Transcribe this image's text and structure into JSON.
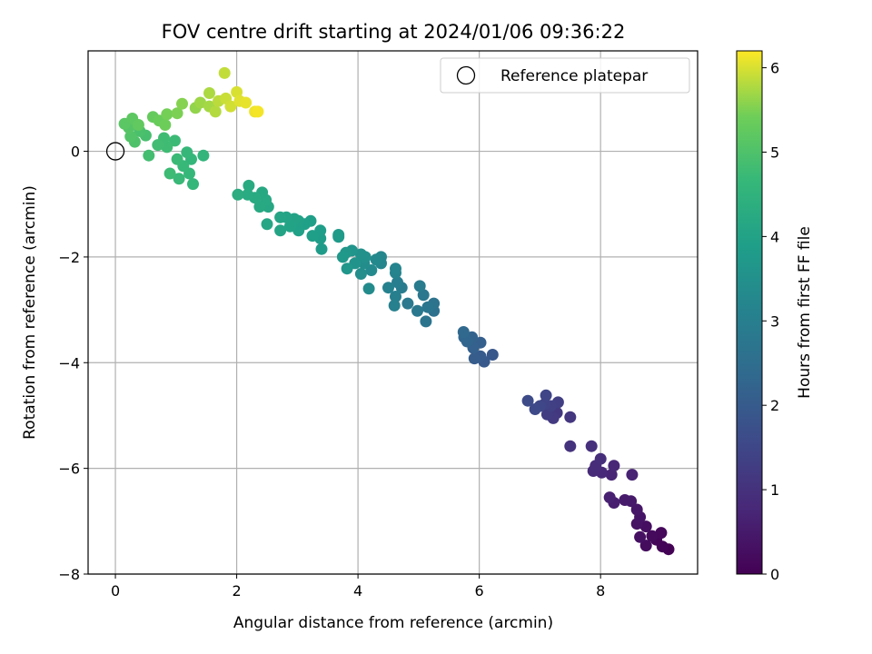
{
  "chart_data": {
    "type": "scatter",
    "title": "FOV centre drift starting at 2024/01/06 09:36:22",
    "xlabel": "Angular distance from reference (arcmin)",
    "ylabel": "Rotation from reference (arcmin)",
    "xlim": [
      -0.45,
      9.6
    ],
    "ylim": [
      -8.0,
      1.9
    ],
    "xticks": [
      0,
      2,
      4,
      6,
      8
    ],
    "yticks": [
      0,
      -2,
      -4,
      -6,
      -8
    ],
    "xtick_labels": [
      "0",
      "2",
      "4",
      "6",
      "8"
    ],
    "ytick_labels": [
      "0",
      "−2",
      "−4",
      "−6",
      "−8"
    ],
    "grid": true,
    "colorbar": {
      "label": "Hours from first FF file",
      "range": [
        0,
        6.2
      ],
      "ticks": [
        0,
        1,
        2,
        3,
        4,
        5,
        6
      ],
      "tick_labels": [
        "0",
        "1",
        "2",
        "3",
        "4",
        "5",
        "6"
      ],
      "colormap": "viridis"
    },
    "legend": {
      "position": "top-right",
      "entries": [
        "Reference platepar"
      ]
    },
    "reference_point": {
      "x": 0,
      "y": 0
    },
    "points": [
      {
        "x": 9.12,
        "y": -7.53,
        "h": 0.02
      },
      {
        "x": 9.02,
        "y": -7.48,
        "h": 0.06
      },
      {
        "x": 8.92,
        "y": -7.35,
        "h": 0.1
      },
      {
        "x": 9.0,
        "y": -7.22,
        "h": 0.14
      },
      {
        "x": 8.85,
        "y": -7.28,
        "h": 0.18
      },
      {
        "x": 8.75,
        "y": -7.46,
        "h": 0.22
      },
      {
        "x": 8.75,
        "y": -7.1,
        "h": 0.26
      },
      {
        "x": 8.65,
        "y": -7.3,
        "h": 0.3
      },
      {
        "x": 8.6,
        "y": -7.05,
        "h": 0.34
      },
      {
        "x": 8.65,
        "y": -6.92,
        "h": 0.38
      },
      {
        "x": 8.6,
        "y": -6.78,
        "h": 0.42
      },
      {
        "x": 8.5,
        "y": -6.62,
        "h": 0.48
      },
      {
        "x": 8.4,
        "y": -6.6,
        "h": 0.52
      },
      {
        "x": 8.22,
        "y": -6.65,
        "h": 0.58
      },
      {
        "x": 8.15,
        "y": -6.55,
        "h": 0.62
      },
      {
        "x": 8.52,
        "y": -6.12,
        "h": 0.68
      },
      {
        "x": 8.18,
        "y": -6.12,
        "h": 0.72
      },
      {
        "x": 8.22,
        "y": -5.95,
        "h": 0.76
      },
      {
        "x": 8.02,
        "y": -6.08,
        "h": 0.8
      },
      {
        "x": 7.88,
        "y": -6.05,
        "h": 0.84
      },
      {
        "x": 7.92,
        "y": -5.95,
        "h": 0.88
      },
      {
        "x": 8.0,
        "y": -5.82,
        "h": 0.92
      },
      {
        "x": 7.85,
        "y": -5.58,
        "h": 0.96
      },
      {
        "x": 7.5,
        "y": -5.58,
        "h": 1.02
      },
      {
        "x": 7.5,
        "y": -5.03,
        "h": 1.1
      },
      {
        "x": 7.28,
        "y": -4.95,
        "h": 1.16
      },
      {
        "x": 7.22,
        "y": -5.05,
        "h": 1.2
      },
      {
        "x": 7.12,
        "y": -4.98,
        "h": 1.25
      },
      {
        "x": 7.3,
        "y": -4.75,
        "h": 1.3
      },
      {
        "x": 7.18,
        "y": -4.82,
        "h": 1.35
      },
      {
        "x": 7.08,
        "y": -4.78,
        "h": 1.4
      },
      {
        "x": 7.1,
        "y": -4.62,
        "h": 1.45
      },
      {
        "x": 7.0,
        "y": -4.82,
        "h": 1.5
      },
      {
        "x": 6.92,
        "y": -4.88,
        "h": 1.55
      },
      {
        "x": 6.8,
        "y": -4.72,
        "h": 1.6
      },
      {
        "x": 6.22,
        "y": -3.85,
        "h": 1.9
      },
      {
        "x": 6.08,
        "y": -3.98,
        "h": 1.95
      },
      {
        "x": 6.02,
        "y": -3.88,
        "h": 2.0
      },
      {
        "x": 5.92,
        "y": -3.92,
        "h": 2.05
      },
      {
        "x": 6.02,
        "y": -3.62,
        "h": 2.1
      },
      {
        "x": 5.9,
        "y": -3.72,
        "h": 2.15
      },
      {
        "x": 5.88,
        "y": -3.52,
        "h": 2.2
      },
      {
        "x": 5.8,
        "y": -3.6,
        "h": 2.25
      },
      {
        "x": 5.75,
        "y": -3.52,
        "h": 2.3
      },
      {
        "x": 5.74,
        "y": -3.42,
        "h": 2.35
      },
      {
        "x": 5.25,
        "y": -3.02,
        "h": 2.6
      },
      {
        "x": 5.25,
        "y": -2.88,
        "h": 2.64
      },
      {
        "x": 5.12,
        "y": -3.22,
        "h": 2.68
      },
      {
        "x": 5.15,
        "y": -2.95,
        "h": 2.72
      },
      {
        "x": 5.08,
        "y": -2.72,
        "h": 2.76
      },
      {
        "x": 4.98,
        "y": -3.02,
        "h": 2.8
      },
      {
        "x": 4.82,
        "y": -2.88,
        "h": 2.84
      },
      {
        "x": 5.02,
        "y": -2.55,
        "h": 2.88
      },
      {
        "x": 4.72,
        "y": -2.58,
        "h": 2.92
      },
      {
        "x": 4.65,
        "y": -2.48,
        "h": 2.96
      },
      {
        "x": 4.62,
        "y": -2.75,
        "h": 3.0
      },
      {
        "x": 4.6,
        "y": -2.92,
        "h": 3.04
      },
      {
        "x": 4.5,
        "y": -2.58,
        "h": 3.08
      },
      {
        "x": 4.62,
        "y": -2.3,
        "h": 3.12
      },
      {
        "x": 4.62,
        "y": -2.22,
        "h": 3.16
      },
      {
        "x": 4.38,
        "y": -2.12,
        "h": 3.2
      },
      {
        "x": 4.38,
        "y": -2.0,
        "h": 3.24
      },
      {
        "x": 4.3,
        "y": -2.05,
        "h": 3.28
      },
      {
        "x": 4.22,
        "y": -2.25,
        "h": 3.32
      },
      {
        "x": 4.18,
        "y": -2.6,
        "h": 3.36
      },
      {
        "x": 4.1,
        "y": -2.12,
        "h": 3.4
      },
      {
        "x": 4.05,
        "y": -2.32,
        "h": 3.44
      },
      {
        "x": 4.12,
        "y": -2.0,
        "h": 3.48
      },
      {
        "x": 4.05,
        "y": -1.95,
        "h": 3.52
      },
      {
        "x": 3.95,
        "y": -2.12,
        "h": 3.56
      },
      {
        "x": 3.9,
        "y": -1.88,
        "h": 3.6
      },
      {
        "x": 3.82,
        "y": -2.22,
        "h": 3.64
      },
      {
        "x": 3.8,
        "y": -1.92,
        "h": 3.68
      },
      {
        "x": 3.75,
        "y": -2.0,
        "h": 3.72
      },
      {
        "x": 3.68,
        "y": -1.62,
        "h": 3.76
      },
      {
        "x": 3.68,
        "y": -1.58,
        "h": 3.78
      },
      {
        "x": 3.4,
        "y": -1.85,
        "h": 3.82
      },
      {
        "x": 3.38,
        "y": -1.65,
        "h": 3.85
      },
      {
        "x": 3.38,
        "y": -1.5,
        "h": 3.88
      },
      {
        "x": 3.25,
        "y": -1.6,
        "h": 3.9
      },
      {
        "x": 3.22,
        "y": -1.32,
        "h": 3.92
      },
      {
        "x": 3.12,
        "y": -1.38,
        "h": 3.94
      },
      {
        "x": 3.02,
        "y": -1.5,
        "h": 3.96
      },
      {
        "x": 3.02,
        "y": -1.32,
        "h": 3.98
      },
      {
        "x": 2.95,
        "y": -1.28,
        "h": 4.0
      },
      {
        "x": 2.88,
        "y": -1.42,
        "h": 4.02
      },
      {
        "x": 2.82,
        "y": -1.25,
        "h": 4.04
      },
      {
        "x": 2.72,
        "y": -1.5,
        "h": 4.06
      },
      {
        "x": 2.72,
        "y": -1.25,
        "h": 4.08
      },
      {
        "x": 2.5,
        "y": -1.38,
        "h": 4.12
      },
      {
        "x": 2.52,
        "y": -1.05,
        "h": 4.15
      },
      {
        "x": 2.48,
        "y": -0.92,
        "h": 4.18
      },
      {
        "x": 2.42,
        "y": -0.78,
        "h": 4.2
      },
      {
        "x": 2.38,
        "y": -1.05,
        "h": 4.22
      },
      {
        "x": 2.3,
        "y": -0.88,
        "h": 4.24
      },
      {
        "x": 2.2,
        "y": -0.65,
        "h": 4.26
      },
      {
        "x": 2.18,
        "y": -0.82,
        "h": 4.28
      },
      {
        "x": 2.02,
        "y": -0.82,
        "h": 4.32
      },
      {
        "x": 1.45,
        "y": -0.08,
        "h": 4.55
      },
      {
        "x": 1.28,
        "y": -0.62,
        "h": 4.6
      },
      {
        "x": 1.25,
        "y": -0.15,
        "h": 4.62
      },
      {
        "x": 1.22,
        "y": -0.42,
        "h": 4.64
      },
      {
        "x": 1.18,
        "y": -0.02,
        "h": 4.66
      },
      {
        "x": 1.12,
        "y": -0.28,
        "h": 4.68
      },
      {
        "x": 1.05,
        "y": -0.52,
        "h": 4.7
      },
      {
        "x": 1.02,
        "y": -0.15,
        "h": 4.72
      },
      {
        "x": 0.98,
        "y": 0.2,
        "h": 4.74
      },
      {
        "x": 0.9,
        "y": -0.42,
        "h": 4.76
      },
      {
        "x": 0.85,
        "y": 0.08,
        "h": 4.78
      },
      {
        "x": 0.8,
        "y": 0.25,
        "h": 4.8
      },
      {
        "x": 0.7,
        "y": 0.12,
        "h": 4.82
      },
      {
        "x": 0.55,
        "y": -0.08,
        "h": 4.86
      },
      {
        "x": 0.5,
        "y": 0.3,
        "h": 4.9
      },
      {
        "x": 0.4,
        "y": 0.38,
        "h": 4.95
      },
      {
        "x": 0.32,
        "y": 0.18,
        "h": 5.0
      },
      {
        "x": 0.25,
        "y": 0.28,
        "h": 5.05
      },
      {
        "x": 0.22,
        "y": 0.45,
        "h": 5.1
      },
      {
        "x": 0.15,
        "y": 0.52,
        "h": 5.15
      },
      {
        "x": 0.28,
        "y": 0.62,
        "h": 5.2
      },
      {
        "x": 0.38,
        "y": 0.5,
        "h": 5.25
      },
      {
        "x": 0.62,
        "y": 0.65,
        "h": 5.3
      },
      {
        "x": 0.72,
        "y": 0.58,
        "h": 5.35
      },
      {
        "x": 0.82,
        "y": 0.5,
        "h": 5.4
      },
      {
        "x": 0.85,
        "y": 0.7,
        "h": 5.45
      },
      {
        "x": 1.02,
        "y": 0.72,
        "h": 5.5
      },
      {
        "x": 1.1,
        "y": 0.9,
        "h": 5.55
      },
      {
        "x": 1.32,
        "y": 0.82,
        "h": 5.62
      },
      {
        "x": 1.4,
        "y": 0.92,
        "h": 5.68
      },
      {
        "x": 1.55,
        "y": 0.85,
        "h": 5.72
      },
      {
        "x": 1.55,
        "y": 1.1,
        "h": 5.76
      },
      {
        "x": 1.65,
        "y": 0.75,
        "h": 5.8
      },
      {
        "x": 1.7,
        "y": 0.95,
        "h": 5.84
      },
      {
        "x": 1.8,
        "y": 1.48,
        "h": 5.88
      },
      {
        "x": 1.82,
        "y": 1.0,
        "h": 5.92
      },
      {
        "x": 1.9,
        "y": 0.85,
        "h": 5.96
      },
      {
        "x": 2.0,
        "y": 1.12,
        "h": 6.0
      },
      {
        "x": 2.05,
        "y": 0.95,
        "h": 6.04
      },
      {
        "x": 2.15,
        "y": 0.92,
        "h": 6.08
      },
      {
        "x": 2.3,
        "y": 0.75,
        "h": 6.12
      },
      {
        "x": 2.35,
        "y": 0.75,
        "h": 6.15
      }
    ]
  }
}
